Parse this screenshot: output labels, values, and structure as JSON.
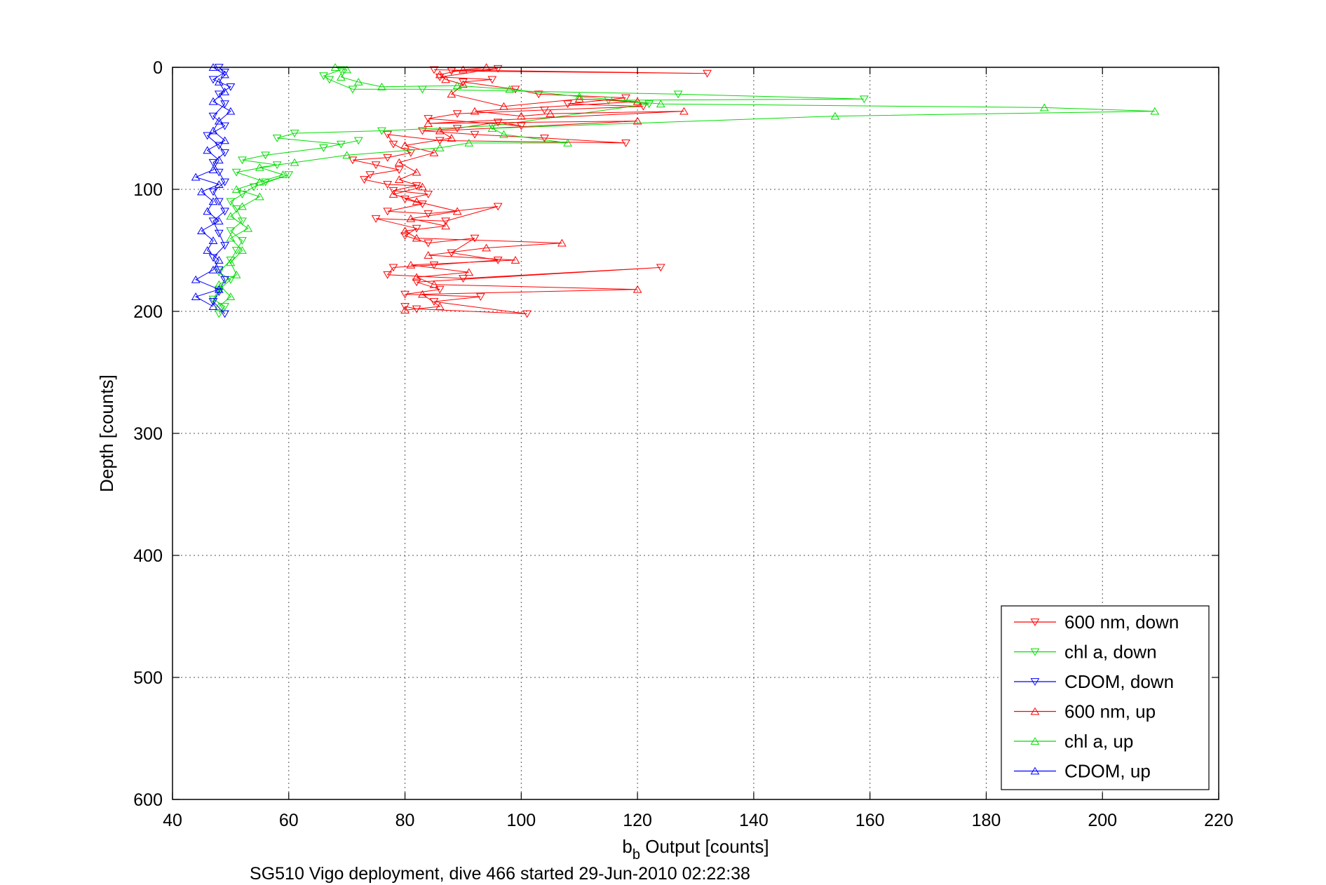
{
  "chart_data": {
    "type": "line",
    "xlabel_main": "b",
    "xlabel_sub": "b",
    "xlabel_rest": " Output [counts]",
    "ylabel": "Depth [counts]",
    "footer": "SG510 Vigo deployment, dive 466 started 29-Jun-2010 02:22:38",
    "xlim": [
      40,
      220
    ],
    "ylim": [
      0,
      600
    ],
    "y_reversed": true,
    "grid": true,
    "legend_position": "bottom-right",
    "xticks": [
      "40",
      "60",
      "80",
      "100",
      "120",
      "140",
      "160",
      "180",
      "200",
      "220"
    ],
    "yticks": [
      "0",
      "100",
      "200",
      "300",
      "400",
      "500",
      "600"
    ],
    "colors": {
      "red": "#ff0000",
      "green": "#00dd00",
      "blue": "#0000ff"
    },
    "series": [
      {
        "name": "600 nm, down",
        "color": "#ff0000",
        "marker": "triangle-down",
        "points": [
          [
            85,
            2
          ],
          [
            132,
            5
          ],
          [
            88,
            3
          ],
          [
            96,
            1
          ],
          [
            86,
            8
          ],
          [
            95,
            10
          ],
          [
            90,
            12
          ],
          [
            99,
            18
          ],
          [
            103,
            22
          ],
          [
            118,
            25
          ],
          [
            108,
            30
          ],
          [
            121,
            32
          ],
          [
            104,
            35
          ],
          [
            89,
            38
          ],
          [
            84,
            42
          ],
          [
            100,
            48
          ],
          [
            96,
            45
          ],
          [
            89,
            50
          ],
          [
            83,
            52
          ],
          [
            92,
            55
          ],
          [
            104,
            58
          ],
          [
            118,
            62
          ],
          [
            86,
            60
          ],
          [
            77,
            55
          ],
          [
            78,
            63
          ],
          [
            81,
            70
          ],
          [
            77,
            74
          ],
          [
            71,
            76
          ],
          [
            75,
            80
          ],
          [
            79,
            84
          ],
          [
            74,
            88
          ],
          [
            73,
            92
          ],
          [
            77,
            96
          ],
          [
            82,
            97
          ],
          [
            78,
            101
          ],
          [
            84,
            104
          ],
          [
            80,
            108
          ],
          [
            83,
            112
          ],
          [
            77,
            118
          ],
          [
            84,
            120
          ],
          [
            96,
            114
          ],
          [
            87,
            126
          ],
          [
            75,
            124
          ],
          [
            82,
            132
          ],
          [
            80,
            138
          ],
          [
            84,
            144
          ],
          [
            92,
            140
          ],
          [
            88,
            152
          ],
          [
            96,
            158
          ],
          [
            85,
            162
          ],
          [
            78,
            164
          ],
          [
            77,
            170
          ],
          [
            90,
            173
          ],
          [
            124,
            164
          ],
          [
            82,
            176
          ],
          [
            86,
            182
          ],
          [
            80,
            186
          ],
          [
            93,
            188
          ],
          [
            85,
            192
          ],
          [
            101,
            202
          ],
          [
            82,
            198
          ],
          [
            80,
            196
          ]
        ]
      },
      {
        "name": "chl a, down",
        "color": "#00dd00",
        "marker": "triangle-down",
        "points": [
          [
            69,
            2
          ],
          [
            66,
            7
          ],
          [
            67,
            10
          ],
          [
            71,
            18
          ],
          [
            83,
            18
          ],
          [
            127,
            22
          ],
          [
            159,
            26
          ],
          [
            115,
            27
          ],
          [
            122,
            30
          ],
          [
            95,
            48
          ],
          [
            76,
            52
          ],
          [
            61,
            54
          ],
          [
            58,
            58
          ],
          [
            69,
            63
          ],
          [
            72,
            60
          ],
          [
            66,
            66
          ],
          [
            56,
            72
          ],
          [
            52,
            76
          ],
          [
            58,
            80
          ],
          [
            51,
            86
          ],
          [
            56,
            94
          ],
          [
            60,
            88
          ],
          [
            54,
            98
          ],
          [
            52,
            104
          ],
          [
            50,
            110
          ],
          [
            51,
            116
          ],
          [
            52,
            126
          ],
          [
            50,
            134
          ],
          [
            52,
            142
          ],
          [
            51,
            150
          ],
          [
            50,
            158
          ],
          [
            48,
            168
          ],
          [
            50,
            174
          ],
          [
            48,
            182
          ],
          [
            47,
            190
          ],
          [
            49,
            196
          ],
          [
            48,
            202
          ]
        ]
      },
      {
        "name": "CDOM, down",
        "color": "#0000ff",
        "marker": "triangle-down",
        "points": [
          [
            48,
            0
          ],
          [
            49,
            4
          ],
          [
            47,
            10
          ],
          [
            50,
            16
          ],
          [
            48,
            22
          ],
          [
            49,
            30
          ],
          [
            47,
            40
          ],
          [
            49,
            48
          ],
          [
            46,
            56
          ],
          [
            48,
            64
          ],
          [
            49,
            70
          ],
          [
            47,
            78
          ],
          [
            48,
            86
          ],
          [
            49,
            94
          ],
          [
            47,
            102
          ],
          [
            48,
            110
          ],
          [
            49,
            118
          ],
          [
            47,
            126
          ],
          [
            48,
            136
          ],
          [
            49,
            146
          ],
          [
            47,
            156
          ],
          [
            48,
            166
          ],
          [
            49,
            174
          ],
          [
            48,
            184
          ],
          [
            47,
            192
          ],
          [
            49,
            202
          ]
        ]
      },
      {
        "name": "600 nm, up",
        "color": "#ff0000",
        "marker": "triangle-up",
        "points": [
          [
            80,
            199
          ],
          [
            86,
            196
          ],
          [
            83,
            186
          ],
          [
            120,
            182
          ],
          [
            85,
            178
          ],
          [
            82,
            172
          ],
          [
            91,
            168
          ],
          [
            81,
            162
          ],
          [
            99,
            158
          ],
          [
            84,
            154
          ],
          [
            94,
            148
          ],
          [
            107,
            144
          ],
          [
            82,
            140
          ],
          [
            80,
            134
          ],
          [
            87,
            130
          ],
          [
            81,
            124
          ],
          [
            89,
            118
          ],
          [
            82,
            110
          ],
          [
            78,
            104
          ],
          [
            83,
            98
          ],
          [
            79,
            92
          ],
          [
            82,
            86
          ],
          [
            79,
            78
          ],
          [
            85,
            70
          ],
          [
            80,
            64
          ],
          [
            88,
            58
          ],
          [
            86,
            52
          ],
          [
            120,
            44
          ],
          [
            84,
            46
          ],
          [
            128,
            36
          ],
          [
            105,
            38
          ],
          [
            100,
            40
          ],
          [
            92,
            36
          ],
          [
            120,
            28
          ],
          [
            110,
            26
          ],
          [
            97,
            32
          ],
          [
            88,
            22
          ],
          [
            90,
            14
          ],
          [
            87,
            10
          ],
          [
            86,
            6
          ],
          [
            90,
            2
          ],
          [
            94,
            0
          ]
        ]
      },
      {
        "name": "chl a, up",
        "color": "#00dd00",
        "marker": "triangle-up",
        "points": [
          [
            48,
            196
          ],
          [
            50,
            188
          ],
          [
            48,
            178
          ],
          [
            51,
            170
          ],
          [
            50,
            160
          ],
          [
            52,
            150
          ],
          [
            50,
            140
          ],
          [
            53,
            132
          ],
          [
            50,
            122
          ],
          [
            52,
            114
          ],
          [
            55,
            106
          ],
          [
            51,
            100
          ],
          [
            55,
            94
          ],
          [
            59,
            88
          ],
          [
            55,
            82
          ],
          [
            61,
            78
          ],
          [
            70,
            72
          ],
          [
            86,
            66
          ],
          [
            91,
            62
          ],
          [
            108,
            62
          ],
          [
            97,
            55
          ],
          [
            95,
            50
          ],
          [
            154,
            40
          ],
          [
            209,
            36
          ],
          [
            190,
            33
          ],
          [
            124,
            30
          ],
          [
            110,
            24
          ],
          [
            98,
            18
          ],
          [
            89,
            15
          ],
          [
            76,
            16
          ],
          [
            72,
            12
          ],
          [
            69,
            8
          ],
          [
            70,
            2
          ],
          [
            68,
            0
          ]
        ]
      },
      {
        "name": "CDOM, up",
        "color": "#0000ff",
        "marker": "triangle-up",
        "points": [
          [
            47,
            196
          ],
          [
            44,
            188
          ],
          [
            48,
            182
          ],
          [
            44,
            174
          ],
          [
            47,
            166
          ],
          [
            48,
            158
          ],
          [
            46,
            150
          ],
          [
            47,
            142
          ],
          [
            45,
            134
          ],
          [
            48,
            126
          ],
          [
            46,
            118
          ],
          [
            47,
            110
          ],
          [
            45,
            102
          ],
          [
            48,
            96
          ],
          [
            44,
            90
          ],
          [
            47,
            84
          ],
          [
            48,
            76
          ],
          [
            46,
            68
          ],
          [
            49,
            60
          ],
          [
            47,
            52
          ],
          [
            48,
            44
          ],
          [
            50,
            36
          ],
          [
            47,
            28
          ],
          [
            49,
            20
          ],
          [
            48,
            12
          ],
          [
            49,
            6
          ],
          [
            47,
            0
          ]
        ]
      }
    ]
  }
}
